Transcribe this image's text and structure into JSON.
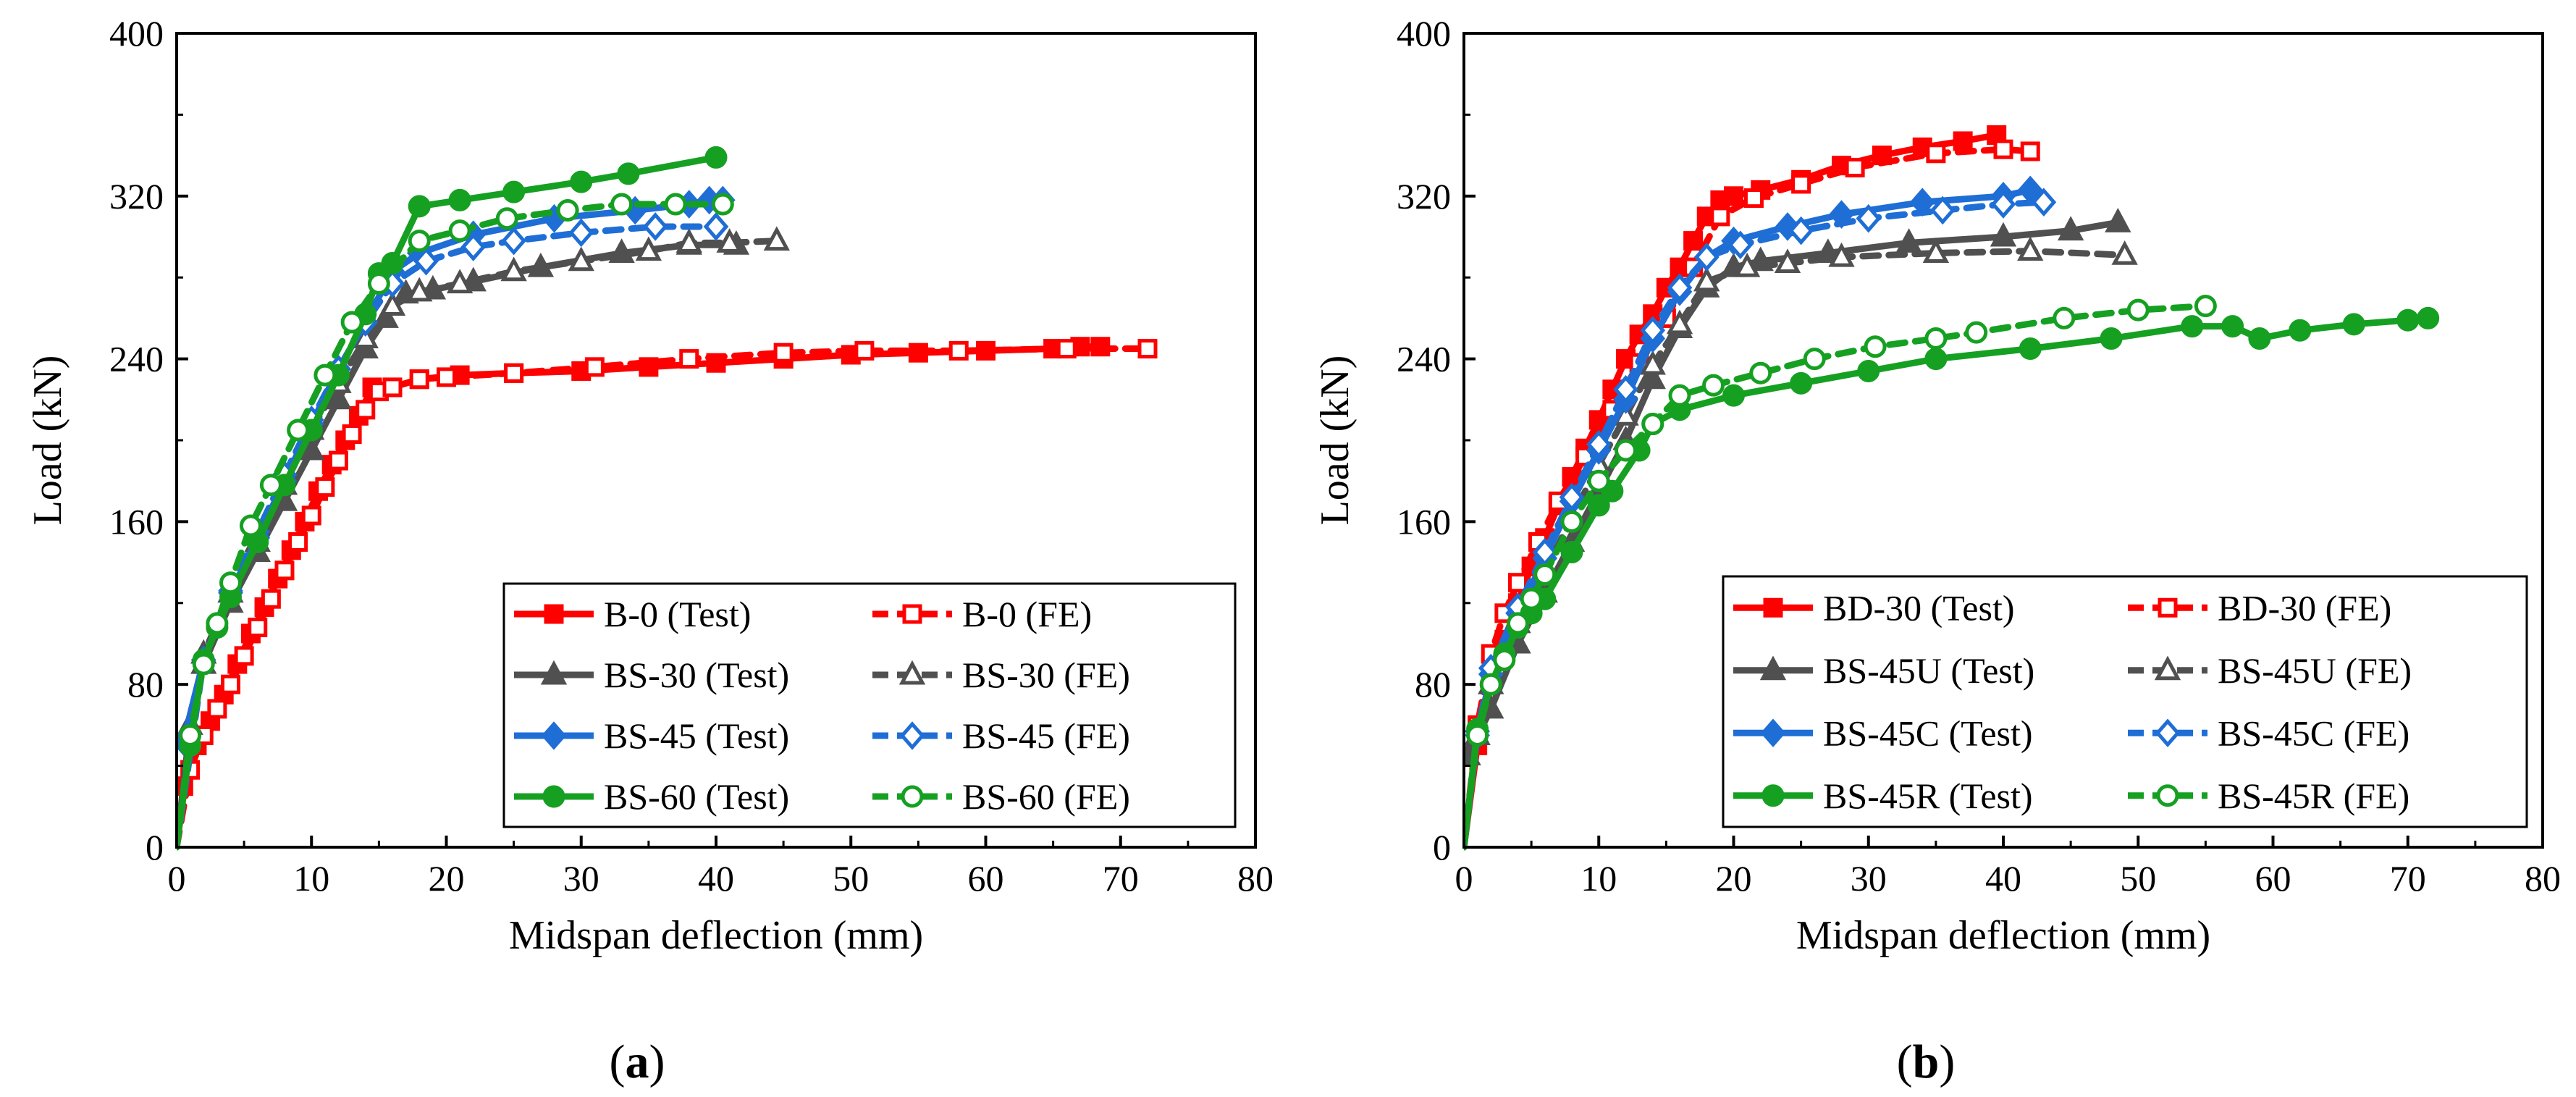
{
  "chart_data": [
    {
      "type": "line",
      "panel_label": "(a)",
      "panel_letter": "a",
      "xlabel": "Midspan deflection (mm)",
      "ylabel": "Load (kN)",
      "xlim": [
        0,
        80
      ],
      "ylim": [
        0,
        400
      ],
      "xticks": [
        0,
        10,
        20,
        30,
        40,
        50,
        60,
        70,
        80
      ],
      "yticks": [
        0,
        80,
        160,
        240,
        320,
        400
      ],
      "legend_position": "bottom-right",
      "series": [
        {
          "name": "B-0 (Test)",
          "color": "#ff0000",
          "style": "solid",
          "marker": "square",
          "filled": true,
          "x": [
            0,
            0.5,
            1.5,
            2.5,
            3.5,
            4.5,
            5.5,
            6.5,
            7.5,
            8.5,
            9.5,
            10.5,
            11.5,
            12.5,
            13.5,
            14.5,
            15,
            16,
            18,
            21,
            25,
            30,
            35,
            40,
            45,
            50,
            55,
            60,
            65,
            67,
            68.5
          ],
          "y": [
            0,
            30,
            50,
            62,
            75,
            90,
            105,
            118,
            132,
            146,
            160,
            175,
            188,
            200,
            212,
            226,
            224,
            226,
            230,
            232,
            233,
            234,
            236,
            238,
            240,
            242,
            243,
            244,
            245,
            246,
            246
          ]
        },
        {
          "name": "B-0 (FE)",
          "color": "#ff0000",
          "style": "dashed",
          "marker": "square",
          "filled": false,
          "x": [
            0,
            1,
            2,
            3,
            4,
            5,
            6,
            7,
            8,
            9,
            10,
            11,
            12,
            13,
            14,
            15,
            16,
            18,
            20,
            25,
            31,
            38,
            45,
            51,
            58,
            66,
            72
          ],
          "y": [
            0,
            38,
            55,
            68,
            80,
            94,
            108,
            122,
            136,
            150,
            163,
            177,
            190,
            203,
            215,
            224,
            226,
            230,
            231,
            233,
            236,
            240,
            243,
            244,
            244,
            245,
            245
          ]
        },
        {
          "name": "BS-30 (Test)",
          "color": "#505050",
          "style": "solid",
          "marker": "triangle",
          "filled": true,
          "x": [
            0,
            1,
            2,
            4,
            6,
            8,
            10,
            12,
            14,
            15.5,
            17,
            19,
            22,
            27,
            33,
            38,
            41.5
          ],
          "y": [
            0,
            60,
            90,
            120,
            145,
            170,
            195,
            220,
            245,
            260,
            272,
            274,
            278,
            285,
            292,
            296,
            296
          ]
        },
        {
          "name": "BS-30 (FE)",
          "color": "#505050",
          "style": "dashed",
          "marker": "triangle",
          "filled": false,
          "x": [
            0,
            2,
            4,
            6,
            8,
            10,
            12,
            14,
            16,
            18,
            21,
            25,
            30,
            35,
            38,
            41,
            44.5
          ],
          "y": [
            0,
            95,
            125,
            150,
            178,
            205,
            228,
            250,
            266,
            273,
            277,
            283,
            288,
            293,
            297,
            297,
            298
          ]
        },
        {
          "name": "BS-45 (Test)",
          "color": "#1e6ed6",
          "style": "solid",
          "marker": "diamond",
          "filled": true,
          "x": [
            0.5,
            2,
            4,
            6,
            8,
            10,
            12,
            14,
            16,
            18,
            22,
            28,
            34,
            38,
            39.5,
            40.5
          ],
          "y": [
            52,
            92,
            125,
            152,
            180,
            208,
            235,
            258,
            283,
            292,
            301,
            309,
            313,
            316,
            318,
            318
          ]
        },
        {
          "name": "BS-45 (FE)",
          "color": "#1e6ed6",
          "style": "dashed",
          "marker": "diamond",
          "filled": false,
          "x": [
            0,
            2,
            4,
            6,
            8,
            10,
            12,
            14,
            16,
            18.5,
            22,
            25,
            30,
            35.5,
            40
          ],
          "y": [
            0,
            92,
            126,
            155,
            183,
            210,
            235,
            258,
            277,
            288,
            295,
            298,
            302,
            305,
            305
          ]
        },
        {
          "name": "BS-60 (Test)",
          "color": "#16a022",
          "style": "solid",
          "marker": "circle",
          "filled": true,
          "x": [
            0,
            1,
            2,
            3,
            4,
            6,
            8,
            10,
            12,
            14,
            15,
            16,
            18,
            21,
            25,
            30,
            33.5,
            40
          ],
          "y": [
            0,
            50,
            92,
            108,
            123,
            150,
            178,
            205,
            232,
            262,
            282,
            287,
            315,
            318,
            322,
            327,
            331,
            339
          ]
        },
        {
          "name": "BS-60 (FE)",
          "color": "#16a022",
          "style": "dashed",
          "marker": "circle",
          "filled": false,
          "x": [
            0,
            1,
            2,
            3,
            4,
            5.5,
            7,
            9,
            11,
            13,
            15,
            18,
            21,
            24.5,
            29,
            33,
            37,
            40.5
          ],
          "y": [
            0,
            55,
            90,
            110,
            130,
            158,
            178,
            205,
            232,
            258,
            277,
            298,
            303,
            309,
            313,
            316,
            316,
            316
          ]
        }
      ]
    },
    {
      "type": "line",
      "panel_label": "(b)",
      "panel_letter": "b",
      "xlabel": "Midspan deflection (mm)",
      "ylabel": "Load (kN)",
      "xlim": [
        0,
        80
      ],
      "ylim": [
        0,
        400
      ],
      "xticks": [
        0,
        10,
        20,
        30,
        40,
        50,
        60,
        70,
        80
      ],
      "yticks": [
        0,
        80,
        160,
        240,
        320,
        400
      ],
      "legend_position": "bottom-center",
      "series": [
        {
          "name": "BD-30 (Test)",
          "color": "#ff0000",
          "style": "solid",
          "marker": "square",
          "filled": true,
          "x": [
            0,
            1,
            2,
            3,
            4,
            5,
            6,
            7,
            8,
            9,
            10,
            11,
            12,
            13,
            14,
            15,
            16,
            17,
            18,
            19,
            20,
            22,
            25,
            28,
            31,
            34,
            37,
            39.5
          ],
          "y": [
            0,
            50,
            80,
            102,
            120,
            138,
            152,
            168,
            182,
            196,
            210,
            225,
            240,
            252,
            262,
            275,
            285,
            298,
            310,
            318,
            320,
            323,
            328,
            335,
            340,
            344,
            347,
            350
          ]
        },
        {
          "name": "BD-30 (FE)",
          "color": "#ff0000",
          "style": "dashed",
          "marker": "square",
          "filled": false,
          "x": [
            0,
            1,
            2,
            3,
            4,
            5.5,
            7,
            9,
            11,
            13,
            15,
            17,
            19,
            21.5,
            25,
            29,
            35,
            40,
            42
          ],
          "y": [
            0,
            60,
            95,
            115,
            130,
            150,
            170,
            192,
            215,
            238,
            260,
            285,
            310,
            319,
            326,
            334,
            341,
            343,
            342
          ]
        },
        {
          "name": "BS-45U (Test)",
          "color": "#505050",
          "style": "solid",
          "marker": "triangle",
          "filled": true,
          "x": [
            0.3,
            2,
            4,
            6,
            8,
            10,
            12,
            14,
            16,
            18,
            20,
            22,
            27,
            33,
            40,
            45,
            48.5
          ],
          "y": [
            45,
            68,
            100,
            125,
            150,
            175,
            200,
            230,
            255,
            275,
            285,
            288,
            292,
            297,
            300,
            303,
            307
          ]
        },
        {
          "name": "BS-45U (FE)",
          "color": "#505050",
          "style": "dashed",
          "marker": "triangle",
          "filled": false,
          "x": [
            0,
            1,
            2,
            4,
            6,
            8,
            10,
            12,
            14,
            16,
            18,
            21,
            24,
            28,
            35,
            42,
            49
          ],
          "y": [
            0,
            55,
            80,
            110,
            135,
            162,
            188,
            212,
            237,
            257,
            278,
            285,
            287,
            290,
            292,
            293,
            291
          ]
        },
        {
          "name": "BS-45C (Test)",
          "color": "#1e6ed6",
          "style": "solid",
          "marker": "diamond",
          "filled": true,
          "x": [
            0,
            1,
            2,
            4,
            6,
            8,
            10,
            12,
            14,
            16,
            18,
            20,
            24,
            28,
            34,
            40,
            42
          ],
          "y": [
            0,
            55,
            85,
            115,
            142,
            170,
            195,
            220,
            250,
            273,
            290,
            298,
            305,
            311,
            317,
            320,
            323
          ]
        },
        {
          "name": "BS-45C (FE)",
          "color": "#1e6ed6",
          "style": "dashed",
          "marker": "diamond",
          "filled": false,
          "x": [
            0,
            1,
            2,
            4,
            6,
            8,
            10,
            12,
            14,
            16,
            18,
            20.5,
            25,
            30,
            35.5,
            40,
            43
          ],
          "y": [
            0,
            57,
            88,
            118,
            145,
            172,
            198,
            225,
            254,
            275,
            290,
            296,
            303,
            309,
            313,
            316,
            317
          ]
        },
        {
          "name": "BS-45R (Test)",
          "color": "#16a022",
          "style": "solid",
          "marker": "circle",
          "filled": true,
          "x": [
            0,
            1,
            2,
            3,
            4,
            5,
            6,
            8,
            10,
            11,
            13,
            14,
            16,
            20,
            25,
            30,
            35,
            42,
            48,
            54,
            57,
            59,
            62,
            66,
            70,
            71.5
          ],
          "y": [
            0,
            58,
            80,
            95,
            108,
            115,
            122,
            145,
            168,
            175,
            195,
            208,
            215,
            222,
            228,
            234,
            240,
            245,
            250,
            256,
            256,
            250,
            254,
            257,
            259,
            260
          ]
        },
        {
          "name": "BS-45R (FE)",
          "color": "#16a022",
          "style": "dashed",
          "marker": "circle",
          "filled": false,
          "x": [
            0,
            1,
            2,
            3,
            4,
            5,
            6,
            8,
            10,
            12,
            14,
            16,
            18.5,
            22,
            26,
            30.5,
            35,
            38,
            44.5,
            50,
            55
          ],
          "y": [
            0,
            55,
            80,
            92,
            110,
            122,
            134,
            160,
            180,
            195,
            208,
            222,
            227,
            233,
            240,
            246,
            250,
            253,
            260,
            264,
            266
          ]
        }
      ]
    }
  ]
}
